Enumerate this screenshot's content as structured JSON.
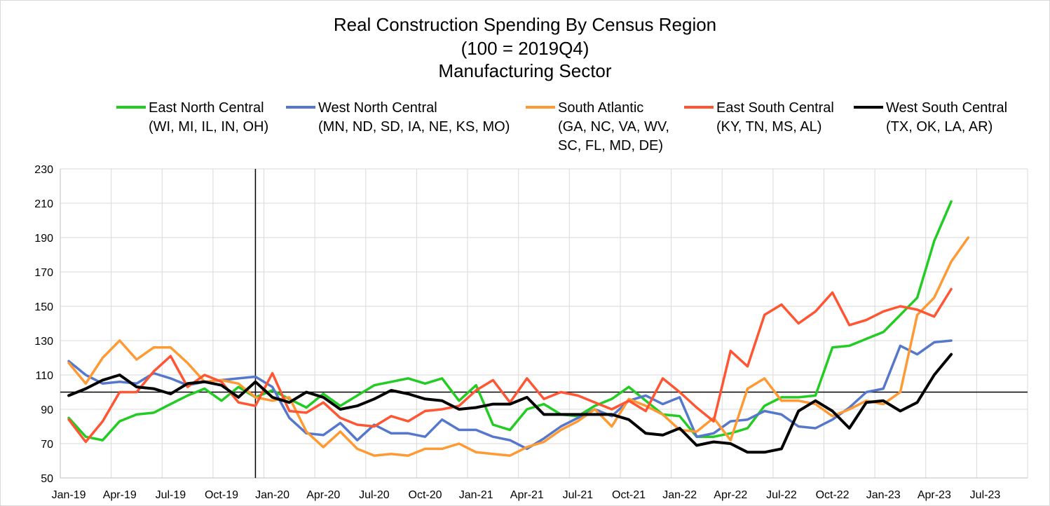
{
  "chart_data": {
    "type": "line",
    "title": [
      "Real Construction Spending By Census Region",
      "(100 = 2019Q4)",
      "Manufacturing Sector"
    ],
    "xlabel": "",
    "ylabel": "",
    "ylim": [
      50,
      230
    ],
    "yticks": [
      50,
      70,
      90,
      110,
      130,
      150,
      170,
      190,
      210,
      230
    ],
    "reference_line": 100,
    "vertical_marker": "Dec-19",
    "x_months": [
      "Jan-19",
      "Feb-19",
      "Mar-19",
      "Apr-19",
      "May-19",
      "Jun-19",
      "Jul-19",
      "Aug-19",
      "Sep-19",
      "Oct-19",
      "Nov-19",
      "Dec-19",
      "Jan-20",
      "Feb-20",
      "Mar-20",
      "Apr-20",
      "May-20",
      "Jun-20",
      "Jul-20",
      "Aug-20",
      "Sep-20",
      "Oct-20",
      "Nov-20",
      "Dec-20",
      "Jan-21",
      "Feb-21",
      "Mar-21",
      "Apr-21",
      "May-21",
      "Jun-21",
      "Jul-21",
      "Aug-21",
      "Sep-21",
      "Oct-21",
      "Nov-21",
      "Dec-21",
      "Jan-22",
      "Feb-22",
      "Mar-22",
      "Apr-22",
      "May-22",
      "Jun-22",
      "Jul-22",
      "Aug-22",
      "Sep-22",
      "Oct-22",
      "Nov-22",
      "Dec-22",
      "Jan-23",
      "Feb-23",
      "Mar-23",
      "Apr-23",
      "May-23",
      "Jun-23",
      "Jul-23",
      "Aug-23",
      "Sep-23"
    ],
    "x_tick_labels": [
      "Jan-19",
      "Apr-19",
      "Jul-19",
      "Oct-19",
      "Jan-20",
      "Apr-20",
      "Jul-20",
      "Oct-20",
      "Jan-21",
      "Apr-21",
      "Jul-21",
      "Oct-21",
      "Jan-22",
      "Apr-22",
      "Jul-22",
      "Oct-22",
      "Jan-23",
      "Apr-23",
      "Jul-23"
    ],
    "series": [
      {
        "name": "East North Central",
        "sub": [
          "(WI, MI, IL, IN, OH)"
        ],
        "color": "#22cc22",
        "values": [
          85,
          74,
          72,
          83,
          87,
          88,
          93,
          98,
          102,
          95,
          103,
          97,
          101,
          96,
          91,
          99,
          92,
          98,
          104,
          106,
          108,
          105,
          108,
          95,
          104,
          81,
          78,
          90,
          93,
          87,
          86,
          92,
          96,
          103,
          95,
          87,
          86,
          74,
          74,
          76,
          79,
          92,
          97,
          97,
          98,
          126,
          127,
          131,
          135,
          145,
          155,
          188,
          211
        ]
      },
      {
        "name": "West North Central",
        "sub": [
          "(MN, ND, SD, IA, NE, KS, MO)"
        ],
        "color": "#5577cc",
        "values": [
          118,
          110,
          105,
          106,
          105,
          111,
          108,
          104,
          106,
          107,
          108,
          109,
          103,
          85,
          76,
          75,
          82,
          72,
          81,
          76,
          76,
          74,
          84,
          78,
          78,
          74,
          72,
          67,
          73,
          80,
          85,
          90,
          86,
          95,
          98,
          93,
          97,
          74,
          76,
          83,
          84,
          89,
          87,
          80,
          79,
          84,
          91,
          100,
          102,
          127,
          122,
          129,
          130
        ]
      },
      {
        "name": "South Atlantic",
        "sub": [
          "(GA, NC, VA, WV,",
          "SC, FL, MD, DE)"
        ],
        "color": "#ff9933",
        "values": [
          117,
          105,
          120,
          130,
          119,
          126,
          126,
          117,
          106,
          107,
          105,
          97,
          95,
          97,
          77,
          68,
          77,
          67,
          63,
          64,
          63,
          67,
          67,
          70,
          65,
          64,
          63,
          68,
          71,
          78,
          83,
          90,
          80,
          96,
          92,
          87,
          78,
          77,
          85,
          72,
          102,
          108,
          95,
          95,
          93,
          86,
          90,
          95,
          93,
          100,
          145,
          155,
          176,
          190
        ]
      },
      {
        "name": "East South Central",
        "sub": [
          "(KY, TN, MS, AL)"
        ],
        "color": "#ff5533",
        "values": [
          84,
          71,
          83,
          100,
          100,
          112,
          121,
          103,
          110,
          106,
          94,
          92,
          111,
          89,
          88,
          94,
          85,
          81,
          80,
          86,
          83,
          89,
          90,
          92,
          101,
          107,
          94,
          108,
          96,
          100,
          98,
          94,
          90,
          95,
          89,
          108,
          100,
          91,
          83,
          124,
          115,
          145,
          151,
          140,
          147,
          158,
          139,
          142,
          147,
          150,
          148,
          144,
          160
        ]
      },
      {
        "name": "West South Central",
        "sub": [
          "(TX, OK, LA, AR)"
        ],
        "color": "#000000",
        "values": [
          98,
          102,
          107,
          110,
          103,
          102,
          99,
          105,
          106,
          104,
          97,
          106,
          97,
          94,
          100,
          97,
          90,
          92,
          96,
          101,
          99,
          96,
          95,
          90,
          91,
          93,
          93,
          97,
          87,
          87,
          87,
          87,
          87,
          84,
          76,
          75,
          79,
          69,
          71,
          70,
          65,
          65,
          67,
          89,
          95,
          89,
          79,
          94,
          95,
          89,
          94,
          110,
          122
        ]
      }
    ]
  }
}
